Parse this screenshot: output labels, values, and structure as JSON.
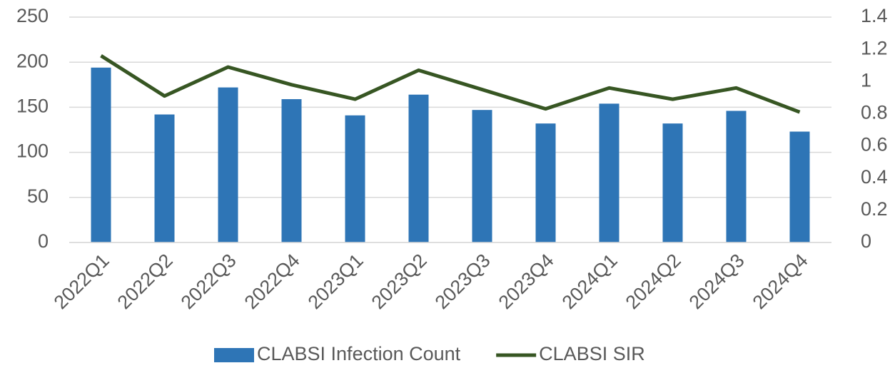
{
  "chart_data": {
    "type": "bar_line",
    "categories": [
      "2022Q1",
      "2022Q2",
      "2022Q3",
      "2022Q4",
      "2023Q1",
      "2023Q2",
      "2023Q3",
      "2023Q4",
      "2024Q1",
      "2024Q2",
      "2024Q3",
      "2024Q4"
    ],
    "series": [
      {
        "name": "CLABSI Infection Count",
        "type": "bar",
        "color": "#2e75b6",
        "values": [
          194,
          142,
          172,
          159,
          141,
          164,
          147,
          132,
          154,
          132,
          146,
          123
        ]
      },
      {
        "name": "CLABSI SIR",
        "type": "line",
        "axis": "y2",
        "color": "#375623",
        "values": [
          1.16,
          0.91,
          1.09,
          0.98,
          0.89,
          1.07,
          0.95,
          0.83,
          0.96,
          0.89,
          0.96,
          0.81
        ]
      }
    ],
    "ylim": [
      0,
      250
    ],
    "yticks": [
      0,
      50,
      100,
      150,
      200,
      250
    ],
    "y2lim": [
      0,
      1.4
    ],
    "y2ticks": [
      0,
      0.2,
      0.4,
      0.6,
      0.8,
      1,
      1.2,
      1.4
    ],
    "grid": true,
    "legend": "bottom"
  }
}
